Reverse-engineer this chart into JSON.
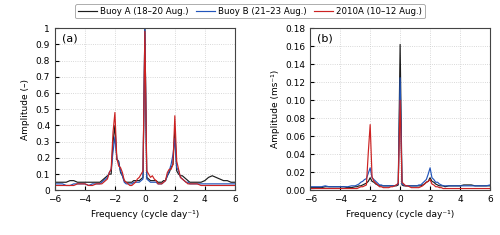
{
  "legend_labels": [
    "Buoy A (18–20 Aug.)",
    "Buoy B (21–23 Aug.)",
    "2010A (10–12 Aug.)"
  ],
  "legend_colors": [
    "#1c1c1c",
    "#2255bb",
    "#cc2222"
  ],
  "panel_a_label": "(a)",
  "panel_b_label": "(b)",
  "ylabel_a": "Amplitude (–)",
  "ylabel_b": "Amplitude (ms⁻¹)",
  "xlabel": "Frequency (cycle day⁻¹)",
  "xlim": [
    -6,
    6
  ],
  "ylim_a": [
    0,
    1.0
  ],
  "ylim_b": [
    0,
    0.18
  ],
  "yticks_a": [
    0.0,
    0.1,
    0.2,
    0.3,
    0.4,
    0.5,
    0.6,
    0.7,
    0.8,
    0.9,
    1.0
  ],
  "yticks_b": [
    0.0,
    0.02,
    0.04,
    0.06,
    0.08,
    0.1,
    0.12,
    0.14,
    0.16,
    0.18
  ],
  "xticks": [
    -6,
    -4,
    -2,
    0,
    2,
    4,
    6
  ],
  "background_color": "#ffffff",
  "grid_color": "#cccccc",
  "panel_a": {
    "buoy_a": {
      "freq": [
        -6.0,
        -5.75,
        -5.5,
        -5.25,
        -5.0,
        -4.75,
        -4.5,
        -4.25,
        -4.0,
        -3.75,
        -3.5,
        -3.25,
        -3.0,
        -2.875,
        -2.75,
        -2.625,
        -2.5,
        -2.375,
        -2.25,
        -2.125,
        -2.0,
        -1.875,
        -1.75,
        -1.625,
        -1.5,
        -1.375,
        -1.25,
        -1.125,
        -1.0,
        -0.875,
        -0.75,
        -0.625,
        -0.5,
        -0.375,
        -0.25,
        -0.125,
        0.0,
        0.125,
        0.25,
        0.375,
        0.5,
        0.625,
        0.75,
        0.875,
        1.0,
        1.125,
        1.25,
        1.375,
        1.5,
        1.625,
        1.75,
        1.875,
        2.0,
        2.125,
        2.25,
        2.375,
        2.5,
        2.625,
        2.75,
        2.875,
        3.0,
        3.25,
        3.5,
        3.75,
        4.0,
        4.25,
        4.5,
        4.75,
        5.0,
        5.25,
        5.5,
        5.75,
        6.0
      ],
      "amp": [
        0.05,
        0.05,
        0.05,
        0.05,
        0.06,
        0.06,
        0.05,
        0.05,
        0.05,
        0.05,
        0.05,
        0.05,
        0.05,
        0.06,
        0.07,
        0.08,
        0.09,
        0.1,
        0.1,
        0.3,
        0.4,
        0.19,
        0.18,
        0.11,
        0.09,
        0.06,
        0.05,
        0.05,
        0.05,
        0.05,
        0.06,
        0.06,
        0.06,
        0.06,
        0.07,
        0.08,
        1.0,
        0.08,
        0.07,
        0.06,
        0.06,
        0.06,
        0.06,
        0.05,
        0.05,
        0.05,
        0.06,
        0.06,
        0.09,
        0.11,
        0.14,
        0.16,
        0.37,
        0.12,
        0.1,
        0.09,
        0.09,
        0.08,
        0.07,
        0.06,
        0.05,
        0.05,
        0.05,
        0.05,
        0.06,
        0.08,
        0.09,
        0.08,
        0.07,
        0.06,
        0.06,
        0.05,
        0.05
      ]
    },
    "buoy_b": {
      "freq": [
        -6.0,
        -5.75,
        -5.5,
        -5.25,
        -5.0,
        -4.75,
        -4.5,
        -4.25,
        -4.0,
        -3.75,
        -3.5,
        -3.25,
        -3.0,
        -2.875,
        -2.75,
        -2.625,
        -2.5,
        -2.375,
        -2.25,
        -2.125,
        -2.0,
        -1.875,
        -1.75,
        -1.625,
        -1.5,
        -1.375,
        -1.25,
        -1.125,
        -1.0,
        -0.875,
        -0.75,
        -0.625,
        -0.5,
        -0.375,
        -0.25,
        -0.125,
        0.0,
        0.125,
        0.25,
        0.375,
        0.5,
        0.625,
        0.75,
        0.875,
        1.0,
        1.125,
        1.25,
        1.375,
        1.5,
        1.625,
        1.75,
        1.875,
        2.0,
        2.125,
        2.25,
        2.375,
        2.5,
        2.625,
        2.75,
        2.875,
        3.0,
        3.25,
        3.5,
        3.75,
        4.0,
        4.25,
        4.5,
        4.75,
        5.0,
        5.25,
        5.5,
        5.75,
        6.0
      ],
      "amp": [
        0.04,
        0.04,
        0.04,
        0.03,
        0.03,
        0.04,
        0.04,
        0.04,
        0.04,
        0.03,
        0.04,
        0.04,
        0.04,
        0.05,
        0.06,
        0.07,
        0.08,
        0.11,
        0.13,
        0.24,
        0.33,
        0.2,
        0.17,
        0.12,
        0.09,
        0.05,
        0.04,
        0.04,
        0.04,
        0.04,
        0.05,
        0.05,
        0.05,
        0.05,
        0.06,
        0.07,
        1.0,
        0.07,
        0.06,
        0.05,
        0.05,
        0.05,
        0.05,
        0.04,
        0.04,
        0.04,
        0.05,
        0.06,
        0.09,
        0.12,
        0.16,
        0.22,
        0.32,
        0.14,
        0.12,
        0.08,
        0.07,
        0.06,
        0.05,
        0.05,
        0.04,
        0.04,
        0.04,
        0.04,
        0.04,
        0.04,
        0.04,
        0.04,
        0.04,
        0.04,
        0.04,
        0.04,
        0.04
      ]
    },
    "buoy_2010a": {
      "freq": [
        -6.0,
        -5.75,
        -5.5,
        -5.25,
        -5.0,
        -4.75,
        -4.5,
        -4.25,
        -4.0,
        -3.75,
        -3.5,
        -3.25,
        -3.0,
        -2.875,
        -2.75,
        -2.625,
        -2.5,
        -2.375,
        -2.25,
        -2.125,
        -2.0,
        -1.875,
        -1.75,
        -1.625,
        -1.5,
        -1.375,
        -1.25,
        -1.125,
        -1.0,
        -0.875,
        -0.75,
        -0.625,
        -0.5,
        -0.375,
        -0.25,
        -0.125,
        0.0,
        0.125,
        0.25,
        0.375,
        0.5,
        0.625,
        0.75,
        0.875,
        1.0,
        1.125,
        1.25,
        1.375,
        1.5,
        1.625,
        1.75,
        1.875,
        2.0,
        2.125,
        2.25,
        2.375,
        2.5,
        2.625,
        2.75,
        2.875,
        3.0,
        3.25,
        3.5,
        3.75,
        4.0,
        4.25,
        4.5,
        4.75,
        5.0,
        5.25,
        5.5,
        5.75,
        6.0
      ],
      "amp": [
        0.03,
        0.03,
        0.03,
        0.03,
        0.03,
        0.03,
        0.04,
        0.04,
        0.04,
        0.03,
        0.03,
        0.04,
        0.04,
        0.04,
        0.05,
        0.06,
        0.07,
        0.11,
        0.13,
        0.36,
        0.48,
        0.2,
        0.15,
        0.14,
        0.11,
        0.06,
        0.05,
        0.04,
        0.03,
        0.03,
        0.04,
        0.05,
        0.07,
        0.08,
        0.1,
        0.12,
        0.98,
        0.12,
        0.1,
        0.08,
        0.09,
        0.07,
        0.06,
        0.04,
        0.04,
        0.04,
        0.05,
        0.06,
        0.11,
        0.13,
        0.13,
        0.16,
        0.46,
        0.18,
        0.13,
        0.08,
        0.07,
        0.06,
        0.05,
        0.04,
        0.04,
        0.04,
        0.04,
        0.03,
        0.03,
        0.03,
        0.03,
        0.03,
        0.03,
        0.03,
        0.03,
        0.03,
        0.03
      ]
    }
  },
  "panel_b": {
    "buoy_a": {
      "freq": [
        -6.0,
        -5.75,
        -5.5,
        -5.25,
        -5.0,
        -4.75,
        -4.5,
        -4.25,
        -4.0,
        -3.75,
        -3.5,
        -3.25,
        -3.0,
        -2.875,
        -2.75,
        -2.625,
        -2.5,
        -2.375,
        -2.25,
        -2.125,
        -2.0,
        -1.875,
        -1.75,
        -1.625,
        -1.5,
        -1.375,
        -1.25,
        -1.125,
        -1.0,
        -0.875,
        -0.75,
        -0.625,
        -0.5,
        -0.375,
        -0.25,
        -0.125,
        0.0,
        0.125,
        0.25,
        0.375,
        0.5,
        0.625,
        0.75,
        0.875,
        1.0,
        1.125,
        1.25,
        1.375,
        1.5,
        1.625,
        1.75,
        1.875,
        2.0,
        2.125,
        2.25,
        2.375,
        2.5,
        2.625,
        2.75,
        2.875,
        3.0,
        3.25,
        3.5,
        3.75,
        4.0,
        4.25,
        4.5,
        4.75,
        5.0,
        5.25,
        5.5,
        5.75,
        6.0
      ],
      "amp": [
        0.003,
        0.003,
        0.003,
        0.003,
        0.004,
        0.004,
        0.004,
        0.004,
        0.004,
        0.004,
        0.003,
        0.003,
        0.004,
        0.004,
        0.005,
        0.005,
        0.006,
        0.007,
        0.008,
        0.01,
        0.014,
        0.01,
        0.009,
        0.007,
        0.006,
        0.005,
        0.005,
        0.005,
        0.005,
        0.005,
        0.005,
        0.005,
        0.005,
        0.005,
        0.005,
        0.006,
        0.162,
        0.006,
        0.005,
        0.005,
        0.005,
        0.005,
        0.005,
        0.005,
        0.005,
        0.005,
        0.005,
        0.005,
        0.006,
        0.007,
        0.009,
        0.01,
        0.014,
        0.01,
        0.009,
        0.007,
        0.006,
        0.005,
        0.005,
        0.005,
        0.004,
        0.005,
        0.005,
        0.005,
        0.005,
        0.006,
        0.006,
        0.006,
        0.005,
        0.005,
        0.005,
        0.005,
        0.005
      ]
    },
    "buoy_b": {
      "freq": [
        -6.0,
        -5.75,
        -5.5,
        -5.25,
        -5.0,
        -4.75,
        -4.5,
        -4.25,
        -4.0,
        -3.75,
        -3.5,
        -3.25,
        -3.0,
        -2.875,
        -2.75,
        -2.625,
        -2.5,
        -2.375,
        -2.25,
        -2.125,
        -2.0,
        -1.875,
        -1.75,
        -1.625,
        -1.5,
        -1.375,
        -1.25,
        -1.125,
        -1.0,
        -0.875,
        -0.75,
        -0.625,
        -0.5,
        -0.375,
        -0.25,
        -0.125,
        0.0,
        0.125,
        0.25,
        0.375,
        0.5,
        0.625,
        0.75,
        0.875,
        1.0,
        1.125,
        1.25,
        1.375,
        1.5,
        1.625,
        1.75,
        1.875,
        2.0,
        2.125,
        2.25,
        2.375,
        2.5,
        2.625,
        2.75,
        2.875,
        3.0,
        3.25,
        3.5,
        3.75,
        4.0,
        4.25,
        4.5,
        4.75,
        5.0,
        5.25,
        5.5,
        5.75,
        6.0
      ],
      "amp": [
        0.004,
        0.004,
        0.004,
        0.004,
        0.005,
        0.004,
        0.004,
        0.004,
        0.004,
        0.004,
        0.004,
        0.005,
        0.005,
        0.006,
        0.007,
        0.009,
        0.01,
        0.012,
        0.013,
        0.019,
        0.025,
        0.014,
        0.012,
        0.01,
        0.008,
        0.006,
        0.006,
        0.005,
        0.005,
        0.005,
        0.005,
        0.005,
        0.005,
        0.005,
        0.006,
        0.007,
        0.125,
        0.007,
        0.006,
        0.005,
        0.005,
        0.005,
        0.005,
        0.005,
        0.005,
        0.005,
        0.006,
        0.006,
        0.008,
        0.01,
        0.012,
        0.018,
        0.025,
        0.014,
        0.012,
        0.009,
        0.009,
        0.007,
        0.006,
        0.005,
        0.005,
        0.005,
        0.005,
        0.005,
        0.005,
        0.005,
        0.005,
        0.005,
        0.005,
        0.005,
        0.005,
        0.005,
        0.006
      ]
    },
    "buoy_2010a": {
      "freq": [
        -6.0,
        -5.75,
        -5.5,
        -5.25,
        -5.0,
        -4.75,
        -4.5,
        -4.25,
        -4.0,
        -3.75,
        -3.5,
        -3.25,
        -3.0,
        -2.875,
        -2.75,
        -2.625,
        -2.5,
        -2.375,
        -2.25,
        -2.125,
        -2.0,
        -1.875,
        -1.75,
        -1.625,
        -1.5,
        -1.375,
        -1.25,
        -1.125,
        -1.0,
        -0.875,
        -0.75,
        -0.625,
        -0.5,
        -0.375,
        -0.25,
        -0.125,
        0.0,
        0.125,
        0.25,
        0.375,
        0.5,
        0.625,
        0.75,
        0.875,
        1.0,
        1.125,
        1.25,
        1.375,
        1.5,
        1.625,
        1.75,
        1.875,
        2.0,
        2.125,
        2.25,
        2.375,
        2.5,
        2.625,
        2.75,
        2.875,
        3.0,
        3.25,
        3.5,
        3.75,
        4.0,
        4.25,
        4.5,
        4.75,
        5.0,
        5.25,
        5.5,
        5.75,
        6.0
      ],
      "amp": [
        0.002,
        0.002,
        0.002,
        0.002,
        0.002,
        0.002,
        0.002,
        0.002,
        0.002,
        0.002,
        0.002,
        0.002,
        0.002,
        0.002,
        0.003,
        0.004,
        0.004,
        0.005,
        0.006,
        0.042,
        0.073,
        0.015,
        0.01,
        0.008,
        0.006,
        0.004,
        0.004,
        0.003,
        0.003,
        0.003,
        0.003,
        0.004,
        0.004,
        0.005,
        0.006,
        0.008,
        0.1,
        0.009,
        0.007,
        0.005,
        0.005,
        0.004,
        0.003,
        0.003,
        0.003,
        0.003,
        0.003,
        0.004,
        0.005,
        0.007,
        0.009,
        0.01,
        0.012,
        0.007,
        0.006,
        0.004,
        0.004,
        0.003,
        0.003,
        0.002,
        0.002,
        0.002,
        0.002,
        0.002,
        0.002,
        0.002,
        0.002,
        0.002,
        0.002,
        0.002,
        0.002,
        0.002,
        0.002
      ]
    }
  }
}
